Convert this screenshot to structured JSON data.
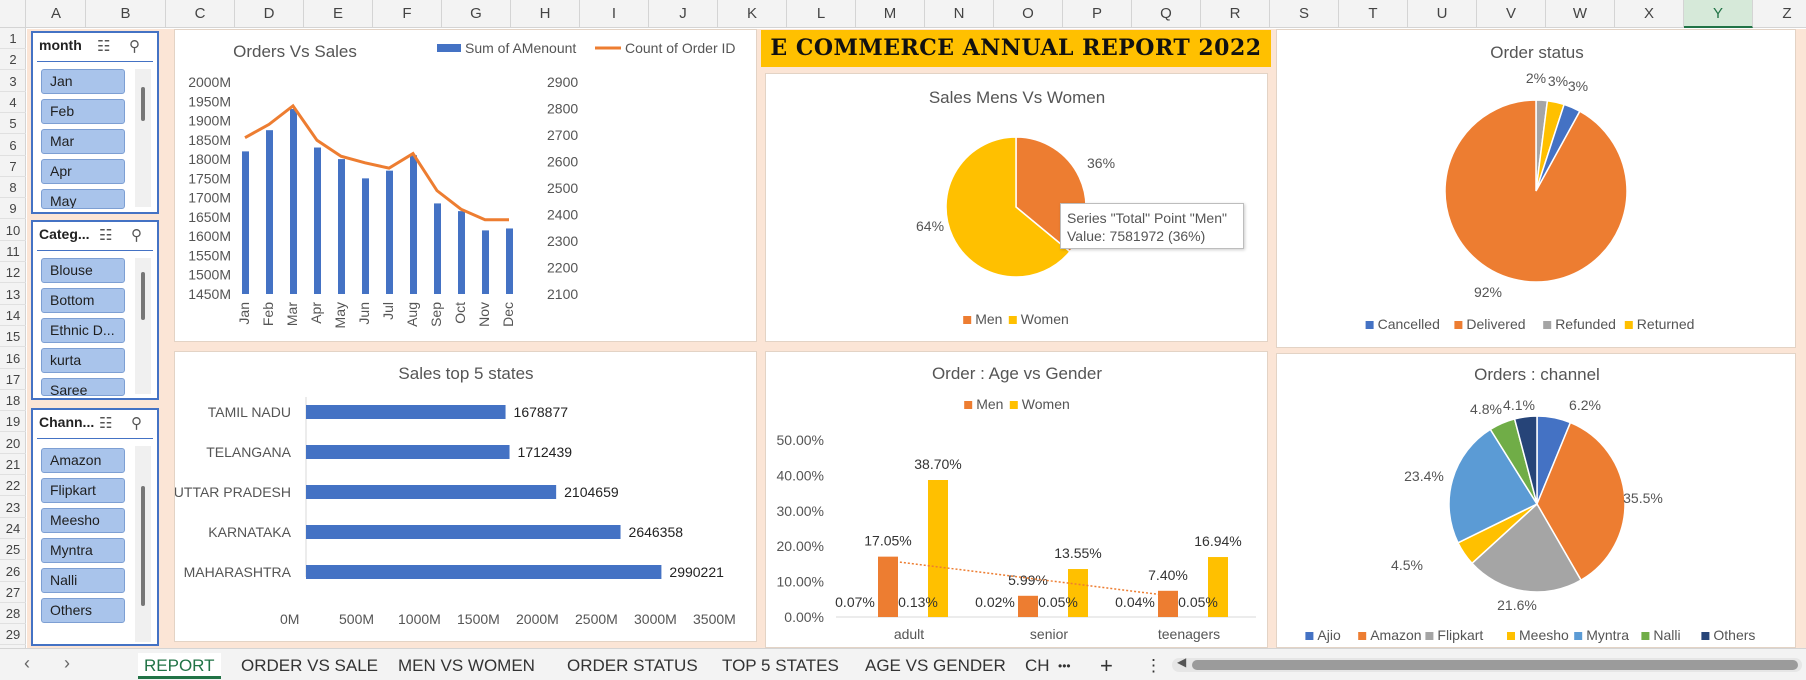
{
  "sheet": {
    "columns": [
      "A",
      "B",
      "C",
      "D",
      "E",
      "F",
      "G",
      "H",
      "I",
      "J",
      "K",
      "L",
      "M",
      "N",
      "O",
      "P",
      "Q",
      "R",
      "S",
      "T",
      "U",
      "V",
      "W",
      "X",
      "Y",
      "Z"
    ],
    "selected_column": "Y",
    "rows": [
      "1",
      "2",
      "3",
      "4",
      "5",
      "6",
      "7",
      "8",
      "9",
      "10",
      "11",
      "12",
      "13",
      "14",
      "15",
      "16",
      "17",
      "18",
      "19",
      "20",
      "21",
      "22",
      "23",
      "24",
      "25",
      "26",
      "27",
      "28",
      "29"
    ]
  },
  "report_title": "E COMMERCE ANNUAL REPORT 2022",
  "slicers": {
    "month": {
      "title": "month",
      "items": [
        "Jan",
        "Feb",
        "Mar",
        "Apr",
        "May"
      ]
    },
    "category": {
      "title": "Categ...",
      "items": [
        "Blouse",
        "Bottom",
        "Ethnic D...",
        "kurta",
        "Saree"
      ]
    },
    "channel": {
      "title": "Chann...",
      "items": [
        "Amazon",
        "Flipkart",
        "Meesho",
        "Myntra",
        "Nalli",
        "Others"
      ]
    }
  },
  "tooltip": {
    "line1": "Series \"Total\" Point \"Men\"",
    "line2": "Value: 7581972 (36%)"
  },
  "tabs": {
    "items": [
      "REPORT",
      "ORDER VS SALE",
      "MEN VS WOMEN",
      "ORDER STATUS",
      "TOP 5 STATES",
      "AGE VS GENDER",
      "CH"
    ],
    "active": "REPORT",
    "more": "•••",
    "add": "+",
    "options": "⋮"
  },
  "colors": {
    "blue": "#4472c4",
    "orange": "#ed7d31",
    "gray": "#a5a5a5",
    "yellow": "#ffc000",
    "lightblue": "#5b9bd5",
    "green": "#70ad47",
    "navy": "#264478",
    "excel_green": "#217346"
  },
  "chart_data": [
    {
      "id": "orders_vs_sales",
      "type": "bar",
      "title": "Orders Vs Sales",
      "categories": [
        "Jan",
        "Feb",
        "Mar",
        "Apr",
        "May",
        "Jun",
        "Jul",
        "Aug",
        "Sep",
        "Oct",
        "Nov",
        "Dec"
      ],
      "series": [
        {
          "name": "Sum of AMenount",
          "kind": "bar",
          "axis": "left",
          "values": [
            1820,
            1875,
            1930,
            1830,
            1800,
            1750,
            1770,
            1810,
            1685,
            1665,
            1615,
            1620
          ]
        },
        {
          "name": "Count of Order ID",
          "kind": "line",
          "axis": "right",
          "values": [
            2690,
            2740,
            2810,
            2680,
            2620,
            2595,
            2575,
            2630,
            2490,
            2420,
            2380,
            2380
          ]
        }
      ],
      "left_ticks": [
        "2000M",
        "1950M",
        "1900M",
        "1850M",
        "1800M",
        "1750M",
        "1700M",
        "1650M",
        "1600M",
        "1550M",
        "1500M",
        "1450M"
      ],
      "right_ticks": [
        "2900",
        "2800",
        "2700",
        "2600",
        "2500",
        "2400",
        "2300",
        "2200",
        "2100"
      ],
      "ylim_left": [
        1450,
        2000
      ],
      "ylim_right": [
        2100,
        2900
      ],
      "legend": "top"
    },
    {
      "id": "sales_men_women",
      "type": "pie",
      "title": "Sales Mens Vs Women",
      "slices": [
        {
          "label": "Men",
          "value": 36,
          "pct_label": "36%"
        },
        {
          "label": "Women",
          "value": 64,
          "pct_label": "64%"
        }
      ],
      "legend": "bottom"
    },
    {
      "id": "order_status",
      "type": "pie",
      "title": "Order status",
      "slices": [
        {
          "label": "Cancelled",
          "value": 3,
          "pct_label": "3%"
        },
        {
          "label": "Delivered",
          "value": 92,
          "pct_label": "92%"
        },
        {
          "label": "Refunded",
          "value": 2,
          "pct_label": "2%"
        },
        {
          "label": "Returned",
          "value": 3,
          "pct_label": "3%"
        }
      ],
      "legend": "bottom"
    },
    {
      "id": "sales_top5_states",
      "type": "bar",
      "orientation": "horizontal",
      "title": "Sales top 5 states",
      "categories": [
        "TAMIL NADU",
        "TELANGANA",
        "UTTAR PRADESH",
        "KARNATAKA",
        "MAHARASHTRA"
      ],
      "values": [
        1678877,
        1712439,
        2104659,
        2646358,
        2990221
      ],
      "value_labels": [
        "1678877",
        "1712439",
        "2104659",
        "2646358",
        "2990221"
      ],
      "x_ticks": [
        "0M",
        "500M",
        "1000M",
        "1500M",
        "2000M",
        "2500M",
        "3000M",
        "3500M"
      ]
    },
    {
      "id": "age_vs_gender",
      "type": "bar",
      "title": "Order : Age vs Gender",
      "categories": [
        "adult",
        "senior",
        "teenagers"
      ],
      "series": [
        {
          "name": "Men",
          "values": [
            17.05,
            5.99,
            7.4
          ],
          "labels": [
            "17.05%",
            "5.99%",
            "7.40%"
          ]
        },
        {
          "name": "Women",
          "values": [
            38.7,
            13.55,
            16.94
          ],
          "labels": [
            "38.70%",
            "13.55%",
            "16.94%"
          ]
        }
      ],
      "extra_labels": [
        {
          "category": "adult",
          "labels": [
            "0.07%",
            "0.13%"
          ]
        },
        {
          "category": "senior",
          "labels": [
            "0.02%",
            "0.05%"
          ]
        },
        {
          "category": "teenagers",
          "labels": [
            "0.04%",
            "0.05%"
          ]
        }
      ],
      "y_ticks": [
        "50.00%",
        "40.00%",
        "30.00%",
        "20.00%",
        "10.00%",
        "0.00%"
      ],
      "ylim": [
        0,
        50
      ],
      "trendline": "Men",
      "legend": "top"
    },
    {
      "id": "orders_channel",
      "type": "pie",
      "title": "Orders : channel",
      "slices": [
        {
          "label": "Ajio",
          "value": 6.2,
          "pct_label": "6.2%"
        },
        {
          "label": "Amazon",
          "value": 35.5,
          "pct_label": "35.5%"
        },
        {
          "label": "Flipkart",
          "value": 21.6,
          "pct_label": "21.6%"
        },
        {
          "label": "Meesho",
          "value": 4.5,
          "pct_label": "4.5%"
        },
        {
          "label": "Myntra",
          "value": 23.4,
          "pct_label": "23.4%"
        },
        {
          "label": "Nalli",
          "value": 4.8,
          "pct_label": "4.8%"
        },
        {
          "label": "Others",
          "value": 4.1,
          "pct_label": "4.1%"
        }
      ],
      "legend": "bottom"
    }
  ]
}
